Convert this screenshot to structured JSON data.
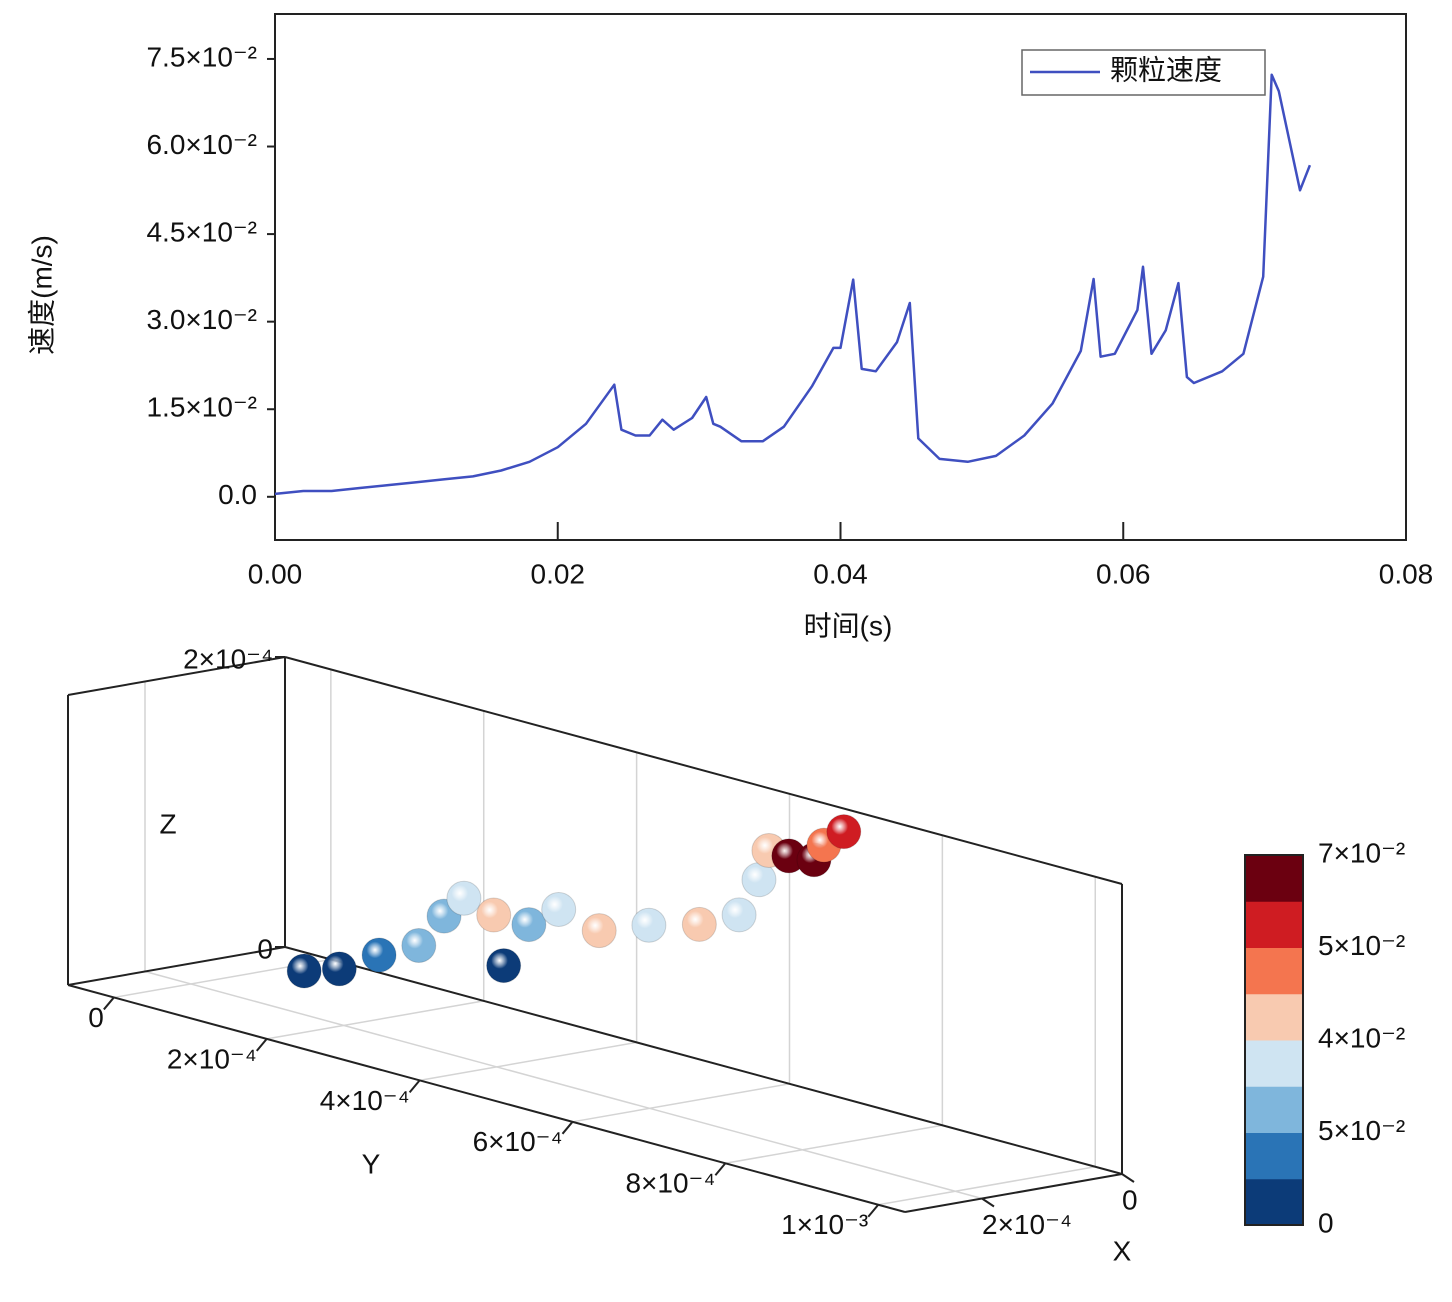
{
  "chart_data": [
    {
      "type": "line",
      "xlabel": "时间(s)",
      "ylabel": "速度(m/s)",
      "x": [
        0,
        0.002,
        0.004,
        0.006,
        0.008,
        0.01,
        0.012,
        0.014,
        0.016,
        0.018,
        0.02,
        0.022,
        0.024,
        0.0245,
        0.0255,
        0.0265,
        0.0274,
        0.0282,
        0.0295,
        0.0305,
        0.031,
        0.0315,
        0.033,
        0.0345,
        0.036,
        0.038,
        0.0395,
        0.04,
        0.0409,
        0.0415,
        0.0425,
        0.044,
        0.0449,
        0.0455,
        0.047,
        0.049,
        0.051,
        0.053,
        0.055,
        0.057,
        0.0579,
        0.0584,
        0.0594,
        0.061,
        0.0614,
        0.062,
        0.063,
        0.0639,
        0.0645,
        0.065,
        0.067,
        0.0685,
        0.0699,
        0.0705,
        0.071,
        0.0725,
        0.0732
      ],
      "series": [
        {
          "name": "颗粒速度",
          "color": "#3f4fc0",
          "values": [
            0.0005,
            0.001,
            0.001,
            0.0015,
            0.002,
            0.0025,
            0.003,
            0.0035,
            0.0045,
            0.006,
            0.0085,
            0.0125,
            0.0192,
            0.0115,
            0.0105,
            0.0105,
            0.0132,
            0.0115,
            0.0135,
            0.0171,
            0.0125,
            0.012,
            0.0095,
            0.0095,
            0.012,
            0.019,
            0.0255,
            0.0255,
            0.0372,
            0.0219,
            0.0215,
            0.0265,
            0.0332,
            0.01,
            0.0065,
            0.006,
            0.007,
            0.0105,
            0.016,
            0.025,
            0.0373,
            0.024,
            0.0245,
            0.032,
            0.0394,
            0.0245,
            0.0285,
            0.0366,
            0.0205,
            0.0195,
            0.0215,
            0.0245,
            0.0377,
            0.0723,
            0.0695,
            0.0525,
            0.0568
          ]
        }
      ],
      "xlim": [
        0,
        0.08
      ],
      "xticks": [
        {
          "value": 0,
          "label": "0.00"
        },
        {
          "value": 0.02,
          "label": "0.02"
        },
        {
          "value": 0.04,
          "label": "0.04"
        },
        {
          "value": 0.06,
          "label": "0.06"
        },
        {
          "value": 0.08,
          "label": "0.08"
        }
      ],
      "ylim": [
        -0.0074,
        0.0827
      ],
      "yticks": [
        {
          "value": 0,
          "label": "0.0"
        },
        {
          "value": 0.015,
          "label": "1.5×10⁻²"
        },
        {
          "value": 0.03,
          "label": "3.0×10⁻²"
        },
        {
          "value": 0.045,
          "label": "4.5×10⁻²"
        },
        {
          "value": 0.06,
          "label": "6.0×10⁻²"
        },
        {
          "value": 0.075,
          "label": "7.5×10⁻²"
        }
      ],
      "legend": "upper right"
    },
    {
      "type": "scatter3d",
      "xlabel": "X",
      "ylabel": "Y",
      "zlabel": "Z",
      "x": [
        6e-05,
        6e-05,
        6e-05,
        6e-05,
        6e-05,
        6e-05,
        6e-05,
        6e-05,
        6e-05,
        6e-05,
        6e-05,
        6e-05,
        6e-05,
        6e-05,
        6e-05,
        6e-05,
        6e-05,
        6e-05,
        6e-05,
        6e-05
      ],
      "y": [
        2e-05,
        6.6e-05,
        0.000118,
        0.00017,
        0.000203,
        0.000229,
        0.000268,
        0.000281,
        0.000314,
        0.000353,
        0.000406,
        0.000471,
        0.000537,
        0.000589,
        0.000615,
        0.000628,
        0.000654,
        0.000687,
        0.0007,
        0.000726
      ],
      "z": [
        0,
        8e-06,
        2.5e-05,
        3.9e-05,
        6.4e-05,
        8e-05,
        7.4e-05,
        4.1e-05,
        7.4e-05,
        9e-05,
        8.3e-05,
        9.6e-05,
        0.000106,
        0.00012,
        0.000148,
        0.00017,
        0.00017,
        0.000172,
        0.000184,
        0.000197
      ],
      "values": [
        0.002,
        0.005,
        0.012,
        0.018,
        0.022,
        0.03,
        0.036,
        0.003,
        0.025,
        0.03,
        0.04,
        0.034,
        0.042,
        0.032,
        0.03,
        0.036,
        0.07,
        0.065,
        0.045,
        0.055
      ],
      "xlim": [
        0,
        0.00031
      ],
      "ylim": [
        -6e-05,
        0.001035
      ],
      "zlim": [
        0,
        0.0002
      ],
      "xticks": [
        {
          "value": 0,
          "label": "0"
        },
        {
          "value": 0.0002,
          "label": "2×10⁻⁴"
        }
      ],
      "yticks": [
        {
          "value": 0,
          "label": "0"
        },
        {
          "value": 0.0002,
          "label": "2×10⁻⁴"
        },
        {
          "value": 0.0004,
          "label": "4×10⁻⁴"
        },
        {
          "value": 0.0006,
          "label": "6×10⁻⁴"
        },
        {
          "value": 0.0008,
          "label": "8×10⁻⁴"
        },
        {
          "value": 0.001,
          "label": "1×10⁻³"
        }
      ],
      "zticks": [
        {
          "value": 0,
          "label": "0"
        },
        {
          "value": 0.0002,
          "label": "2×10⁻⁴"
        }
      ],
      "clim": [
        0,
        0.07
      ],
      "colorbar": {
        "colors": [
          "#0c3b78",
          "#2a74b6",
          "#7fb6dc",
          "#cfe4f2",
          "#f8cab0",
          "#f4754f",
          "#cf1c22",
          "#6b0010"
        ],
        "labels": [
          "7×10⁻²",
          "5×10⁻²",
          "4×10⁻²",
          "5×10⁻²",
          "0"
        ]
      }
    }
  ]
}
